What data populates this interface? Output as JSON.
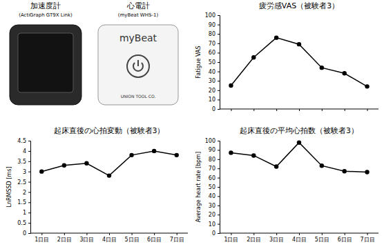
{
  "devices": [
    {
      "label": "加速度計",
      "model": "(ActiGraph GT9X Link)"
    },
    {
      "label": "心電計",
      "model": "(myBeat WHS-1)",
      "brand": "myBeat",
      "maker": "UNION TOOL CO."
    }
  ],
  "chart_data": [
    {
      "type": "line",
      "title": "疲労感VAS（被験者3）",
      "y_label": "Fatigue VAS",
      "categories": [
        null,
        null,
        null,
        null,
        null,
        null,
        null
      ],
      "values": [
        25,
        55,
        76,
        69,
        44,
        38,
        24
      ],
      "ylim": [
        0,
        100
      ],
      "yticks": [
        0,
        10,
        20,
        30,
        40,
        50,
        60,
        70,
        80,
        90,
        100
      ],
      "color": "#000000",
      "marker": "circle",
      "line_style": "solid",
      "grid": false,
      "tick_labels": "y"
    },
    {
      "type": "line",
      "title": "起床直後の心拍変動（被験者3）",
      "y_label": "LnRMSSD [ms]",
      "categories": [
        "1日目",
        "2日目",
        "3日目",
        "4日目",
        "5日目",
        "6日目",
        "7日目"
      ],
      "values": [
        3.0,
        3.3,
        3.4,
        2.8,
        3.8,
        4.0,
        3.8
      ],
      "ylim": [
        0,
        4.5
      ],
      "yticks": [
        0,
        0.5,
        1,
        1.5,
        2,
        2.5,
        3,
        3.5,
        4,
        4.5
      ],
      "color": "#000000",
      "marker": "circle",
      "line_style": "solid",
      "grid": false
    },
    {
      "type": "line",
      "title": "起床直後の平均心拍数（被験者3）",
      "y_label": "Average heart rate [bpm]",
      "categories": [
        "1日目",
        "2日目",
        "3日目",
        "4日目",
        "5日目",
        "6日目",
        "7日目"
      ],
      "values": [
        87,
        84,
        72,
        98,
        73,
        67,
        66
      ],
      "ylim": [
        0,
        100
      ],
      "yticks": [
        0,
        10,
        20,
        30,
        40,
        50,
        60,
        70,
        80,
        90,
        100
      ],
      "color": "#000000",
      "marker": "circle",
      "line_style": "solid",
      "grid": false
    }
  ]
}
